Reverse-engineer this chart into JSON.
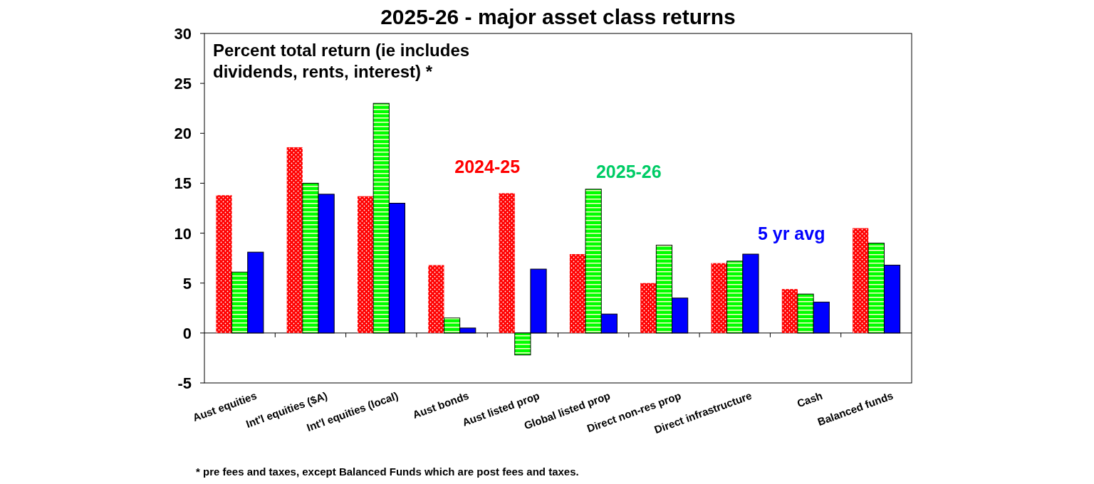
{
  "chart_data": {
    "type": "bar",
    "title": "2025-26 - major asset class returns",
    "categories": [
      "Aust equities",
      "Int'l equities ($A)",
      "Int'l equities (local)",
      "Aust bonds",
      "Aust listed prop",
      "Global listed prop",
      "Direct non-res prop",
      "Direct infrastructure",
      "Cash",
      "Balanced funds"
    ],
    "series": [
      {
        "name": "2024-25",
        "color": "#ff0000",
        "values": [
          13.8,
          18.6,
          13.7,
          6.8,
          14.0,
          7.9,
          5.0,
          7.0,
          4.4,
          10.5
        ]
      },
      {
        "name": "2025-26",
        "color": "#00ff00",
        "values": [
          6.1,
          15.0,
          23.0,
          1.5,
          -2.2,
          14.4,
          8.8,
          7.2,
          3.9,
          9.0
        ]
      },
      {
        "name": "5 yr avg",
        "color": "#0000ff",
        "values": [
          8.1,
          13.9,
          13.0,
          0.5,
          6.4,
          1.9,
          3.5,
          7.9,
          3.1,
          6.8
        ]
      }
    ],
    "ylim": [
      -5,
      30
    ],
    "yticks": [
      -5,
      0,
      5,
      10,
      15,
      20,
      25,
      30
    ],
    "annotations": [
      "Percent total return (ie includes dividends, rents, interest) *",
      "* pre fees and taxes, except Balanced Funds which are post fees and taxes."
    ]
  }
}
